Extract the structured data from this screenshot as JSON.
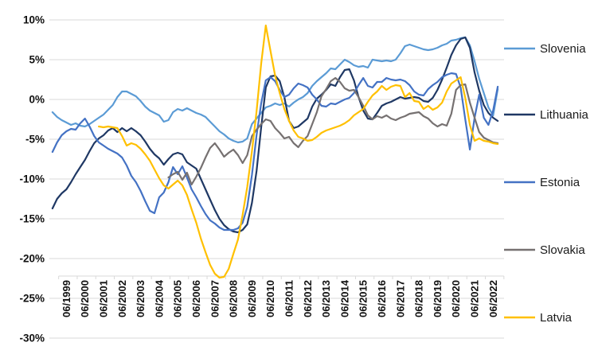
{
  "chart_data": {
    "type": "line",
    "title": "",
    "xlabel": "",
    "ylabel": "",
    "grid": true,
    "legend_position": "right",
    "y_axis": {
      "min": -30,
      "max": 10,
      "step": 5,
      "unit": "%",
      "ticks": [
        {
          "value": 10,
          "label": "10%"
        },
        {
          "value": 5,
          "label": "5%"
        },
        {
          "value": 0,
          "label": "0%"
        },
        {
          "value": -5,
          "label": "-5%"
        },
        {
          "value": -10,
          "label": "-10%"
        },
        {
          "value": -15,
          "label": "-15%"
        },
        {
          "value": -20,
          "label": "-20%"
        },
        {
          "value": -25,
          "label": "-25%"
        },
        {
          "value": -30,
          "label": "-30%"
        }
      ]
    },
    "x_axis": {
      "tick_labels": [
        "06/1999",
        "06/2000",
        "06/2001",
        "06/2002",
        "06/2003",
        "06/2004",
        "06/2005",
        "06/2006",
        "06/2007",
        "06/2008",
        "06/2009",
        "06/2010",
        "06/2011",
        "06/2012",
        "06/2013",
        "06/2014",
        "06/2015",
        "06/2016",
        "06/2017",
        "06/2018",
        "06/2019",
        "06/2020",
        "06/2021",
        "06/2022"
      ],
      "label_rotation_deg": -90,
      "frequency": "quarterly data, yearly labels at June"
    },
    "series": [
      {
        "name": "Slovenia",
        "color": "#5B9BD5",
        "start_t": 1998.667,
        "step": 0.25,
        "values": [
          -1.6,
          -2.2,
          -2.6,
          -2.9,
          -3.2,
          -3.0,
          -3.3,
          -3.4,
          -3.1,
          -2.7,
          -2.3,
          -1.9,
          -1.3,
          -0.7,
          0.3,
          1.0,
          1.0,
          0.7,
          0.4,
          -0.2,
          -0.9,
          -1.4,
          -1.7,
          -2.0,
          -2.8,
          -2.6,
          -1.6,
          -1.2,
          -1.4,
          -1.1,
          -1.4,
          -1.7,
          -1.9,
          -2.2,
          -2.8,
          -3.4,
          -4.0,
          -4.4,
          -4.9,
          -5.2,
          -5.4,
          -5.3,
          -4.9,
          -3.1,
          -2.4,
          -1.7,
          -1.0,
          -0.8,
          -0.5,
          -0.7,
          -0.5,
          -0.9,
          -0.4,
          0.0,
          0.3,
          0.8,
          1.7,
          2.3,
          2.8,
          3.3,
          3.9,
          3.8,
          4.4,
          5.0,
          4.7,
          4.3,
          4.1,
          4.2,
          4.0,
          5.0,
          4.9,
          4.8,
          4.9,
          4.8,
          5.0,
          5.8,
          6.7,
          6.9,
          6.7,
          6.5,
          6.3,
          6.2,
          6.3,
          6.5,
          6.8,
          7.0,
          7.4,
          7.5,
          7.7,
          7.8,
          6.8,
          4.8,
          2.6,
          0.8,
          -1.0,
          -2.0,
          1.3
        ]
      },
      {
        "name": "Lithuania",
        "color": "#1F3864",
        "start_t": 1998.667,
        "step": 0.25,
        "values": [
          -13.7,
          -12.5,
          -11.8,
          -11.3,
          -10.4,
          -9.4,
          -8.5,
          -7.6,
          -6.5,
          -5.5,
          -4.9,
          -4.5,
          -3.9,
          -3.6,
          -4.1,
          -3.6,
          -4.0,
          -3.6,
          -4.0,
          -4.5,
          -5.3,
          -6.2,
          -6.9,
          -7.4,
          -8.2,
          -7.5,
          -6.9,
          -6.7,
          -6.9,
          -7.9,
          -8.3,
          -8.7,
          -10.0,
          -11.3,
          -12.6,
          -13.9,
          -15.0,
          -15.8,
          -16.3,
          -16.6,
          -16.7,
          -16.4,
          -15.7,
          -13.0,
          -9.0,
          -3.5,
          1.5,
          2.9,
          3.0,
          2.3,
          0.3,
          -2.7,
          -3.6,
          -3.4,
          -2.9,
          -2.4,
          -0.9,
          0.1,
          0.6,
          1.2,
          1.9,
          1.7,
          2.8,
          3.7,
          3.8,
          2.4,
          0.3,
          -1.4,
          -2.4,
          -2.5,
          -1.7,
          -0.8,
          -0.5,
          -0.3,
          0.0,
          0.3,
          0.1,
          0.2,
          0.3,
          0.2,
          -0.2,
          -0.3,
          0.2,
          1.2,
          2.5,
          4.0,
          5.6,
          6.8,
          7.6,
          7.8,
          6.5,
          3.4,
          1.1,
          -0.7,
          -1.7,
          -2.3,
          -2.7
        ]
      },
      {
        "name": "Estonia",
        "color": "#4472C4",
        "start_t": 1998.667,
        "step": 0.25,
        "values": [
          -6.6,
          -5.4,
          -4.5,
          -4.0,
          -3.7,
          -3.8,
          -3.0,
          -2.4,
          -3.4,
          -4.6,
          -5.4,
          -5.8,
          -6.2,
          -6.5,
          -6.8,
          -7.3,
          -8.3,
          -9.6,
          -10.4,
          -11.5,
          -12.8,
          -14.0,
          -14.3,
          -12.3,
          -11.7,
          -10.4,
          -8.5,
          -9.4,
          -8.4,
          -9.8,
          -11.3,
          -12.3,
          -13.4,
          -14.4,
          -15.2,
          -15.6,
          -16.1,
          -16.4,
          -16.4,
          -16.4,
          -16.2,
          -15.5,
          -13.5,
          -9.5,
          -4.5,
          -0.5,
          2.4,
          2.8,
          2.3,
          1.2,
          0.3,
          0.6,
          1.4,
          2.0,
          1.8,
          1.5,
          0.6,
          0.0,
          -0.8,
          -0.9,
          -0.5,
          -0.6,
          -0.3,
          0.0,
          0.2,
          0.8,
          1.8,
          2.7,
          1.7,
          1.5,
          2.2,
          2.2,
          2.7,
          2.5,
          2.4,
          2.5,
          2.3,
          1.8,
          1.0,
          0.6,
          0.5,
          1.3,
          1.8,
          2.2,
          2.8,
          3.1,
          3.3,
          3.2,
          1.5,
          -2.5,
          -6.3,
          -2.3,
          0.6,
          -2.3,
          -3.2,
          -1.4,
          1.6
        ]
      },
      {
        "name": "Slovakia",
        "color": "#767171",
        "start_t": 2004.917,
        "step": 0.25,
        "values": [
          -9.8,
          -9.4,
          -9.1,
          -10.1,
          -9.2,
          -10.7,
          -9.7,
          -8.6,
          -7.3,
          -6.1,
          -5.5,
          -6.3,
          -7.2,
          -6.7,
          -6.3,
          -7.0,
          -8.0,
          -7.0,
          -4.6,
          -3.8,
          -3.1,
          -2.5,
          -2.7,
          -3.6,
          -4.2,
          -4.9,
          -4.7,
          -5.5,
          -6.0,
          -5.2,
          -4.6,
          -3.1,
          -1.6,
          0.4,
          1.3,
          2.3,
          2.7,
          2.2,
          1.4,
          1.1,
          1.2,
          0.3,
          -0.8,
          -2.0,
          -2.5,
          -2.1,
          -2.3,
          -2.0,
          -2.4,
          -2.6,
          -2.3,
          -2.1,
          -1.8,
          -1.7,
          -1.6,
          -2.1,
          -2.4,
          -3.0,
          -3.4,
          -3.1,
          -3.3,
          -1.8,
          1.2,
          1.8,
          1.9,
          -0.4,
          -2.3,
          -4.1,
          -4.8,
          -5.1,
          -5.4,
          -5.5
        ]
      },
      {
        "name": "Latvia",
        "color": "#FFC000",
        "start_t": 2001.167,
        "step": 0.25,
        "values": [
          -3.4,
          -3.5,
          -3.4,
          -3.5,
          -3.6,
          -4.6,
          -5.8,
          -5.5,
          -5.7,
          -6.2,
          -6.9,
          -7.7,
          -8.8,
          -9.9,
          -10.8,
          -11.2,
          -10.7,
          -10.2,
          -10.8,
          -12.0,
          -13.8,
          -15.5,
          -17.5,
          -19.2,
          -20.8,
          -21.9,
          -22.4,
          -22.3,
          -21.3,
          -19.4,
          -17.6,
          -14.5,
          -11.0,
          -6.5,
          -1.5,
          4.5,
          9.3,
          6.1,
          3.0,
          0.8,
          -1.2,
          -2.7,
          -3.9,
          -4.7,
          -4.9,
          -5.2,
          -5.1,
          -4.7,
          -4.2,
          -3.9,
          -3.7,
          -3.5,
          -3.3,
          -3.0,
          -2.6,
          -2.0,
          -1.6,
          -1.2,
          -0.3,
          0.5,
          1.0,
          1.7,
          1.2,
          1.6,
          1.8,
          1.7,
          0.3,
          0.8,
          -0.2,
          -0.3,
          -1.2,
          -0.8,
          -1.3,
          -1.0,
          -0.4,
          1.0,
          2.0,
          2.4,
          2.8,
          0.2,
          -3.2,
          -5.2,
          -4.9,
          -5.2,
          -5.3,
          -5.5,
          -5.6
        ]
      }
    ],
    "legend": [
      {
        "label": "Slovenia",
        "color": "#5B9BD5"
      },
      {
        "label": "Lithuania",
        "color": "#1F3864"
      },
      {
        "label": "Estonia",
        "color": "#4472C4"
      },
      {
        "label": "Slovakia",
        "color": "#767171"
      },
      {
        "label": "Latvia",
        "color": "#FFC000"
      }
    ],
    "colors": {
      "gridline": "#D9D9D9",
      "axis_line": "#D9D9D9",
      "tick_text": "#111111",
      "background": "#FFFFFF"
    }
  }
}
